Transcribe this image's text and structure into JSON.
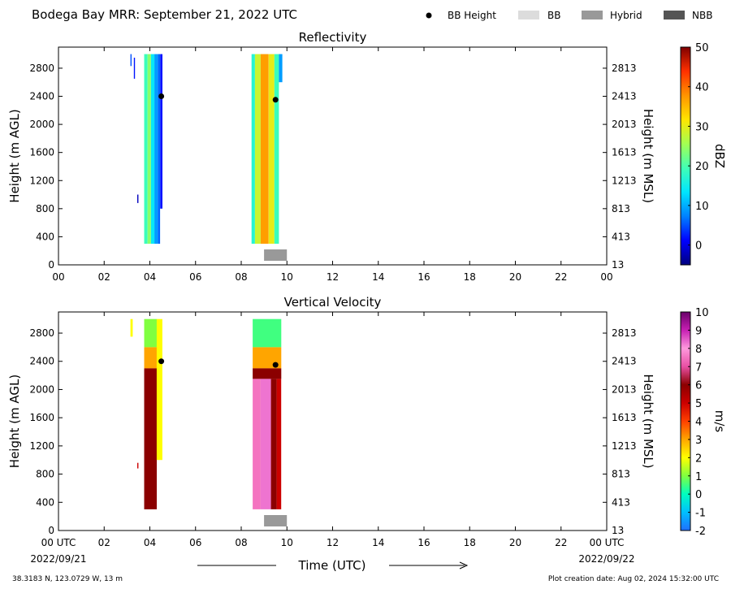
{
  "header": {
    "title": "Bodega Bay MRR:  September 21, 2022 UTC",
    "legend": [
      {
        "label": "BB Height",
        "kind": "dot",
        "color": "#000000"
      },
      {
        "label": "BB",
        "kind": "swatch",
        "color": "#dcdcdc"
      },
      {
        "label": "Hybrid",
        "kind": "swatch",
        "color": "#999999"
      },
      {
        "label": "NBB",
        "kind": "swatch",
        "color": "#555555"
      }
    ]
  },
  "footer": {
    "location": "38.3183 N, 123.0729 W, 13 m",
    "creation": "Plot creation date: Aug 02, 2024 15:32:00 UTC",
    "time_label": "Time (UTC)",
    "start_time": "00 UTC",
    "start_date": "2022/09/21",
    "end_time": "00 UTC",
    "end_date": "2022/09/22"
  },
  "chart_data": [
    {
      "type": "heatmap",
      "title": "Reflectivity",
      "ylabel": "Height (m AGL)",
      "ylabel_right": "Height (m MSL)",
      "x_hours": [
        0,
        24
      ],
      "xticks": [
        "00",
        "02",
        "04",
        "06",
        "08",
        "10",
        "12",
        "14",
        "16",
        "18",
        "20",
        "22",
        "00"
      ],
      "ylim": [
        0,
        3100
      ],
      "yticks_left": [
        "0",
        "400",
        "800",
        "1200",
        "1600",
        "2000",
        "2400",
        "2800"
      ],
      "yticks_right": [
        "13",
        "413",
        "813",
        "1213",
        "1613",
        "2013",
        "2413",
        "2813"
      ],
      "colorbar": {
        "label": "dBZ",
        "range": [
          -5,
          50
        ],
        "ticks": [
          "0",
          "10",
          "20",
          "30",
          "40",
          "50"
        ],
        "tick_values": [
          0,
          10,
          20,
          30,
          40,
          50
        ],
        "colors": [
          "#00007f",
          "#0000ff",
          "#0080ff",
          "#00e5ff",
          "#40ffb6",
          "#a3ff52",
          "#ffe500",
          "#ff9400",
          "#ff3000",
          "#7f0000"
        ]
      },
      "columns": [
        {
          "x0": 3.15,
          "x1": 3.2,
          "y0": 2830,
          "y1": 3000,
          "value": 5
        },
        {
          "x0": 3.3,
          "x1": 3.35,
          "y0": 2650,
          "y1": 2950,
          "value": 2
        },
        {
          "x0": 3.45,
          "x1": 3.5,
          "y0": 880,
          "y1": 1000,
          "value": -2
        },
        {
          "x0": 3.75,
          "x1": 3.9,
          "y0": 300,
          "y1": 3000,
          "value": 19
        },
        {
          "x0": 3.9,
          "x1": 4.05,
          "y0": 300,
          "y1": 3000,
          "value": 24
        },
        {
          "x0": 4.05,
          "x1": 4.2,
          "y0": 300,
          "y1": 3000,
          "value": 14
        },
        {
          "x0": 4.2,
          "x1": 4.35,
          "y0": 300,
          "y1": 3000,
          "value": 9
        },
        {
          "x0": 4.35,
          "x1": 4.45,
          "y0": 300,
          "y1": 3000,
          "value": 6
        },
        {
          "x0": 4.45,
          "x1": 4.55,
          "y0": 800,
          "y1": 3000,
          "value": 2
        },
        {
          "x0": 8.45,
          "x1": 8.6,
          "y0": 300,
          "y1": 3000,
          "value": 17
        },
        {
          "x0": 8.6,
          "x1": 8.85,
          "y0": 300,
          "y1": 3000,
          "value": 28
        },
        {
          "x0": 8.85,
          "x1": 9.2,
          "y0": 300,
          "y1": 3000,
          "value": 37
        },
        {
          "x0": 9.2,
          "x1": 9.45,
          "y0": 300,
          "y1": 3000,
          "value": 30
        },
        {
          "x0": 9.45,
          "x1": 9.65,
          "y0": 300,
          "y1": 3000,
          "value": 19
        },
        {
          "x0": 9.65,
          "x1": 9.8,
          "y0": 2600,
          "y1": 3000,
          "value": 9
        }
      ],
      "bb_points": [
        {
          "x": 4.5,
          "y": 2400
        },
        {
          "x": 9.5,
          "y": 2350
        }
      ],
      "bb_type": [
        {
          "x0": 9.0,
          "x1": 10.0,
          "type": "Hybrid"
        }
      ]
    },
    {
      "type": "heatmap",
      "title": "Vertical Velocity",
      "ylabel": "Height (m AGL)",
      "ylabel_right": "Height (m MSL)",
      "x_hours": [
        0,
        24
      ],
      "xticks": [
        "00 UTC",
        "02",
        "04",
        "06",
        "08",
        "10",
        "12",
        "14",
        "16",
        "18",
        "20",
        "22",
        "00 UTC"
      ],
      "ylim": [
        0,
        3100
      ],
      "yticks_left": [
        "0",
        "400",
        "800",
        "1200",
        "1600",
        "2000",
        "2400",
        "2800"
      ],
      "yticks_right": [
        "13",
        "413",
        "813",
        "1213",
        "1613",
        "2013",
        "2413",
        "2813"
      ],
      "colorbar": {
        "label": "m/s",
        "range": [
          -2,
          10
        ],
        "ticks": [
          "-2",
          "-1",
          "0",
          "1",
          "2",
          "3",
          "4",
          "5",
          "6",
          "7",
          "8",
          "9",
          "10"
        ],
        "tick_values": [
          -2,
          -1,
          0,
          1,
          2,
          3,
          4,
          5,
          6,
          7,
          8,
          9,
          10
        ],
        "colors": [
          "#1f6fff",
          "#00bfff",
          "#00ffbf",
          "#80ff40",
          "#ffff00",
          "#ffa500",
          "#ff4000",
          "#cc0000",
          "#8b0000",
          "#e84fa3",
          "#ff99dd",
          "#c71fb3",
          "#6a006a"
        ]
      },
      "columns": [
        {
          "x0": 3.15,
          "x1": 3.25,
          "y0": 2750,
          "y1": 3000,
          "value": 2
        },
        {
          "x0": 3.45,
          "x1": 3.5,
          "y0": 880,
          "y1": 960,
          "value": 5
        },
        {
          "x0": 3.75,
          "x1": 4.3,
          "y0": 2600,
          "y1": 3000,
          "value": 1
        },
        {
          "x0": 3.75,
          "x1": 4.3,
          "y0": 2300,
          "y1": 2600,
          "value": 3
        },
        {
          "x0": 3.75,
          "x1": 4.3,
          "y0": 300,
          "y1": 2300,
          "value": 6
        },
        {
          "x0": 4.3,
          "x1": 4.55,
          "y0": 1000,
          "y1": 3000,
          "value": 2
        },
        {
          "x0": 8.5,
          "x1": 9.75,
          "y0": 2600,
          "y1": 3000,
          "value": 0.5
        },
        {
          "x0": 8.5,
          "x1": 9.75,
          "y0": 2300,
          "y1": 2600,
          "value": 3
        },
        {
          "x0": 8.5,
          "x1": 9.75,
          "y0": 2150,
          "y1": 2300,
          "value": 6
        },
        {
          "x0": 8.5,
          "x1": 8.85,
          "y0": 300,
          "y1": 2150,
          "value": 7.5
        },
        {
          "x0": 8.85,
          "x1": 9.3,
          "y0": 300,
          "y1": 2150,
          "value": 8.3
        },
        {
          "x0": 9.3,
          "x1": 9.55,
          "y0": 300,
          "y1": 2150,
          "value": 6
        },
        {
          "x0": 9.55,
          "x1": 9.75,
          "y0": 300,
          "y1": 2150,
          "value": 5
        }
      ],
      "bb_points": [
        {
          "x": 4.5,
          "y": 2400
        },
        {
          "x": 9.5,
          "y": 2350
        }
      ],
      "bb_type": [
        {
          "x0": 9.0,
          "x1": 10.0,
          "type": "Hybrid"
        }
      ]
    }
  ]
}
